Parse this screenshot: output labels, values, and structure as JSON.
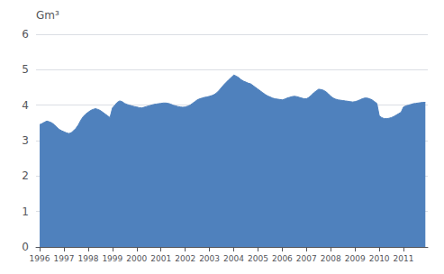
{
  "chart_data": {
    "type": "area",
    "ylabel": "Gm³",
    "color": "#4f81bd",
    "grid": true,
    "xlim": [
      1995.85,
      2012.0
    ],
    "xticks": [
      1996,
      1997,
      1998,
      1999,
      2000,
      2001,
      2002,
      2003,
      2004,
      2005,
      2006,
      2007,
      2008,
      2009,
      2010,
      2011
    ],
    "ylim": [
      0,
      6
    ],
    "yticks": [
      0,
      1,
      2,
      3,
      4,
      5,
      6
    ],
    "x": [
      1996.0,
      1996.1,
      1996.2,
      1996.3,
      1996.4,
      1996.5,
      1996.6,
      1996.7,
      1996.8,
      1996.9,
      1997.0,
      1997.1,
      1997.2,
      1997.3,
      1997.4,
      1997.5,
      1997.6,
      1997.7,
      1997.8,
      1997.9,
      1998.0,
      1998.1,
      1998.2,
      1998.3,
      1998.4,
      1998.5,
      1998.6,
      1998.7,
      1998.8,
      1998.9,
      1999.0,
      1999.1,
      1999.2,
      1999.3,
      1999.4,
      1999.5,
      1999.6,
      1999.7,
      1999.8,
      1999.9,
      2000.0,
      2000.1,
      2000.2,
      2000.3,
      2000.4,
      2000.5,
      2000.6,
      2000.7,
      2000.8,
      2000.9,
      2001.0,
      2001.1,
      2001.2,
      2001.3,
      2001.4,
      2001.5,
      2001.6,
      2001.7,
      2001.8,
      2001.9,
      2002.0,
      2002.1,
      2002.2,
      2002.3,
      2002.4,
      2002.5,
      2002.6,
      2002.7,
      2002.8,
      2002.9,
      2003.0,
      2003.1,
      2003.2,
      2003.3,
      2003.4,
      2003.5,
      2003.6,
      2003.7,
      2003.8,
      2003.9,
      2004.0,
      2004.1,
      2004.2,
      2004.3,
      2004.4,
      2004.5,
      2004.6,
      2004.7,
      2004.8,
      2004.9,
      2005.0,
      2005.1,
      2005.2,
      2005.3,
      2005.4,
      2005.5,
      2005.6,
      2005.7,
      2005.8,
      2005.9,
      2006.0,
      2006.1,
      2006.2,
      2006.3,
      2006.4,
      2006.5,
      2006.6,
      2006.7,
      2006.8,
      2006.9,
      2007.0,
      2007.1,
      2007.2,
      2007.3,
      2007.4,
      2007.5,
      2007.6,
      2007.7,
      2007.8,
      2007.9,
      2008.0,
      2008.1,
      2008.2,
      2008.3,
      2008.4,
      2008.5,
      2008.6,
      2008.7,
      2008.8,
      2008.9,
      2009.0,
      2009.1,
      2009.2,
      2009.3,
      2009.4,
      2009.5,
      2009.6,
      2009.7,
      2009.8,
      2009.9,
      2010.0,
      2010.1,
      2010.2,
      2010.3,
      2010.4,
      2010.5,
      2010.6,
      2010.7,
      2010.8,
      2010.9,
      2011.0,
      2011.1,
      2011.2,
      2011.3,
      2011.4,
      2011.5,
      2011.6,
      2011.7,
      2011.8,
      2011.9
    ],
    "values": [
      3.45,
      3.48,
      3.52,
      3.55,
      3.53,
      3.5,
      3.45,
      3.38,
      3.32,
      3.28,
      3.25,
      3.22,
      3.2,
      3.22,
      3.28,
      3.35,
      3.45,
      3.58,
      3.68,
      3.75,
      3.8,
      3.85,
      3.88,
      3.9,
      3.88,
      3.85,
      3.8,
      3.75,
      3.7,
      3.65,
      3.92,
      4.0,
      4.08,
      4.12,
      4.1,
      4.05,
      4.02,
      4.0,
      3.98,
      3.96,
      3.95,
      3.93,
      3.92,
      3.94,
      3.96,
      3.98,
      4.0,
      4.02,
      4.03,
      4.04,
      4.05,
      4.06,
      4.06,
      4.05,
      4.03,
      4.0,
      3.98,
      3.96,
      3.95,
      3.94,
      3.95,
      3.97,
      4.0,
      4.05,
      4.1,
      4.15,
      4.18,
      4.2,
      4.22,
      4.23,
      4.25,
      4.27,
      4.3,
      4.35,
      4.42,
      4.5,
      4.58,
      4.65,
      4.72,
      4.78,
      4.85,
      4.82,
      4.78,
      4.72,
      4.68,
      4.65,
      4.62,
      4.6,
      4.55,
      4.5,
      4.45,
      4.4,
      4.35,
      4.3,
      4.26,
      4.23,
      4.2,
      4.18,
      4.17,
      4.16,
      4.15,
      4.17,
      4.2,
      4.22,
      4.24,
      4.25,
      4.24,
      4.22,
      4.2,
      4.18,
      4.18,
      4.22,
      4.28,
      4.35,
      4.4,
      4.45,
      4.44,
      4.42,
      4.38,
      4.32,
      4.25,
      4.2,
      4.17,
      4.15,
      4.14,
      4.13,
      4.12,
      4.11,
      4.1,
      4.09,
      4.1,
      4.12,
      4.15,
      4.18,
      4.2,
      4.2,
      4.18,
      4.15,
      4.1,
      4.05,
      3.7,
      3.65,
      3.62,
      3.62,
      3.63,
      3.65,
      3.68,
      3.72,
      3.76,
      3.8,
      3.95,
      3.98,
      4.0,
      4.02,
      4.04,
      4.05,
      4.06,
      4.07,
      4.08,
      4.08
    ]
  }
}
